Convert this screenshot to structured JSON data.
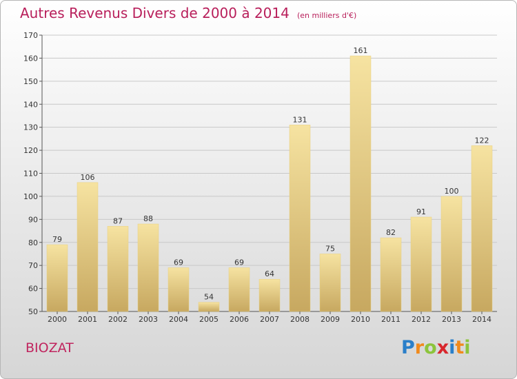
{
  "title": "Autres Revenus Divers de 2000 à 2014",
  "unit_label": "(en milliers d'€)",
  "commune": "BIOZAT",
  "brand_letters": [
    "P",
    "r",
    "o",
    "x",
    "i",
    "t",
    "i"
  ],
  "brand_colors": [
    "#2a7fc9",
    "#f08a1c",
    "#8cc43c",
    "#d8262c",
    "#2a7fc9",
    "#f08a1c",
    "#8cc43c"
  ],
  "colors": {
    "title": "#b81e5a",
    "bar_light": "#f6e3a1",
    "bar_dark": "#c7a860",
    "grid": "#c8c8c8"
  },
  "chart_data": {
    "type": "bar",
    "title": "Autres Revenus Divers de 2000 à 2014",
    "subtitle": "(en milliers d'€)",
    "xlabel": "",
    "ylabel": "",
    "categories": [
      "2000",
      "2001",
      "2002",
      "2003",
      "2004",
      "2005",
      "2006",
      "2007",
      "2008",
      "2009",
      "2010",
      "2011",
      "2012",
      "2013",
      "2014"
    ],
    "values": [
      79,
      106,
      87,
      88,
      69,
      54,
      69,
      64,
      131,
      75,
      161,
      82,
      91,
      100,
      122
    ],
    "ylim": [
      50,
      170
    ],
    "yticks": [
      50,
      60,
      70,
      80,
      90,
      100,
      110,
      120,
      130,
      140,
      150,
      160,
      170
    ],
    "grid": true,
    "data_labels": true
  }
}
